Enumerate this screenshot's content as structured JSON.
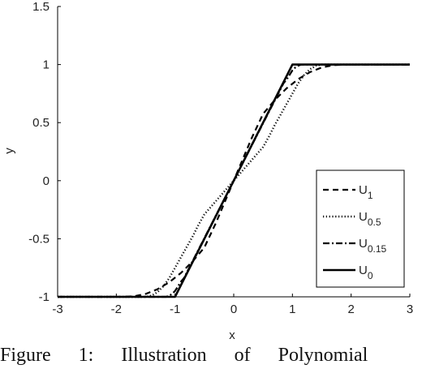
{
  "chart_data": {
    "type": "line",
    "xlabel": "x",
    "ylabel": "y",
    "xlim": [
      -3,
      3
    ],
    "ylim": [
      -1,
      1.5
    ],
    "xticks": [
      -3,
      -2,
      -1,
      0,
      1,
      2,
      3
    ],
    "yticks": [
      -1,
      -0.5,
      0,
      0.5,
      1,
      1.5
    ],
    "legend_position": "bottom-right",
    "series": [
      {
        "name": "U1",
        "label_main": "U",
        "label_sub": "1",
        "style": "dashed",
        "x": [
          -3,
          -1.9,
          -1.7,
          -1.5,
          -1.3,
          -1.1,
          -0.9,
          -0.7,
          -0.5,
          -0.3,
          -0.1,
          0,
          0.1,
          0.3,
          0.5,
          0.7,
          0.9,
          1.1,
          1.3,
          1.5,
          1.7,
          1.9,
          3
        ],
        "y": [
          -1,
          -1,
          -0.995,
          -0.975,
          -0.935,
          -0.875,
          -0.795,
          -0.695,
          -0.575,
          -0.36,
          -0.12,
          0,
          0.12,
          0.36,
          0.575,
          0.695,
          0.795,
          0.875,
          0.935,
          0.975,
          0.995,
          1,
          1
        ]
      },
      {
        "name": "U0.5",
        "label_main": "U",
        "label_sub": "0.5",
        "style": "dotted",
        "x": [
          -3,
          -1.5,
          -1.4,
          -1.3,
          -1.2,
          -1.1,
          -1.0,
          -0.9,
          -0.8,
          -0.7,
          -0.6,
          -0.5,
          0,
          0.5,
          0.6,
          0.7,
          0.8,
          0.9,
          1.0,
          1.1,
          1.2,
          1.3,
          1.4,
          1.5,
          3
        ],
        "y": [
          -1,
          -1,
          -0.99,
          -0.96,
          -0.91,
          -0.84,
          -0.75,
          -0.66,
          -0.57,
          -0.48,
          -0.38,
          -0.29,
          0,
          0.29,
          0.38,
          0.48,
          0.57,
          0.66,
          0.75,
          0.84,
          0.91,
          0.96,
          0.99,
          1,
          1
        ]
      },
      {
        "name": "U0.15",
        "label_main": "U",
        "label_sub": "0.15",
        "style": "dashdot",
        "x": [
          -3,
          -1.15,
          -1.1,
          -1.05,
          -1.0,
          -0.95,
          -0.9,
          -0.85,
          0,
          0.85,
          0.9,
          0.95,
          1.0,
          1.05,
          1.1,
          1.15,
          3
        ],
        "y": [
          -1,
          -1,
          -0.99,
          -0.975,
          -0.95,
          -0.91,
          -0.87,
          -0.84,
          0,
          0.84,
          0.87,
          0.91,
          0.95,
          0.975,
          0.99,
          1,
          1
        ]
      },
      {
        "name": "U0",
        "label_main": "U",
        "label_sub": "0",
        "style": "solid",
        "x": [
          -3,
          -1,
          1,
          3
        ],
        "y": [
          -1,
          -1,
          1,
          1
        ]
      }
    ]
  },
  "caption": "Figure 1: Illustration of Polynomial"
}
